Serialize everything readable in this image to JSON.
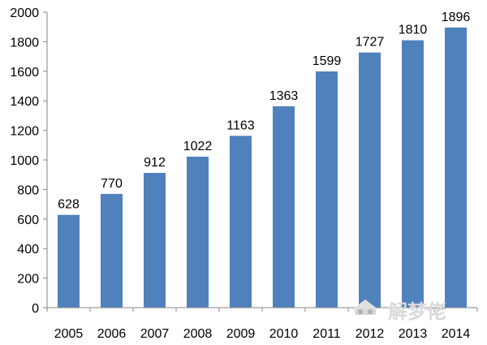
{
  "chart_data": {
    "type": "bar",
    "categories": [
      "2005",
      "2006",
      "2007",
      "2008",
      "2009",
      "2010",
      "2011",
      "2012",
      "2013",
      "2014"
    ],
    "values": [
      628,
      770,
      912,
      1022,
      1163,
      1363,
      1599,
      1727,
      1810,
      1896
    ],
    "title": "",
    "xlabel": "",
    "ylabel": "",
    "ylim": [
      0,
      2000
    ],
    "yticks": [
      0,
      200,
      400,
      600,
      800,
      1000,
      1200,
      1400,
      1600,
      1800,
      2000
    ],
    "grid": false,
    "legend": "none",
    "bar_color": "#4f81bd",
    "data_labels": true
  },
  "watermark": {
    "text": "解梦佬",
    "icon": "fortune-teller-logo-icon"
  }
}
